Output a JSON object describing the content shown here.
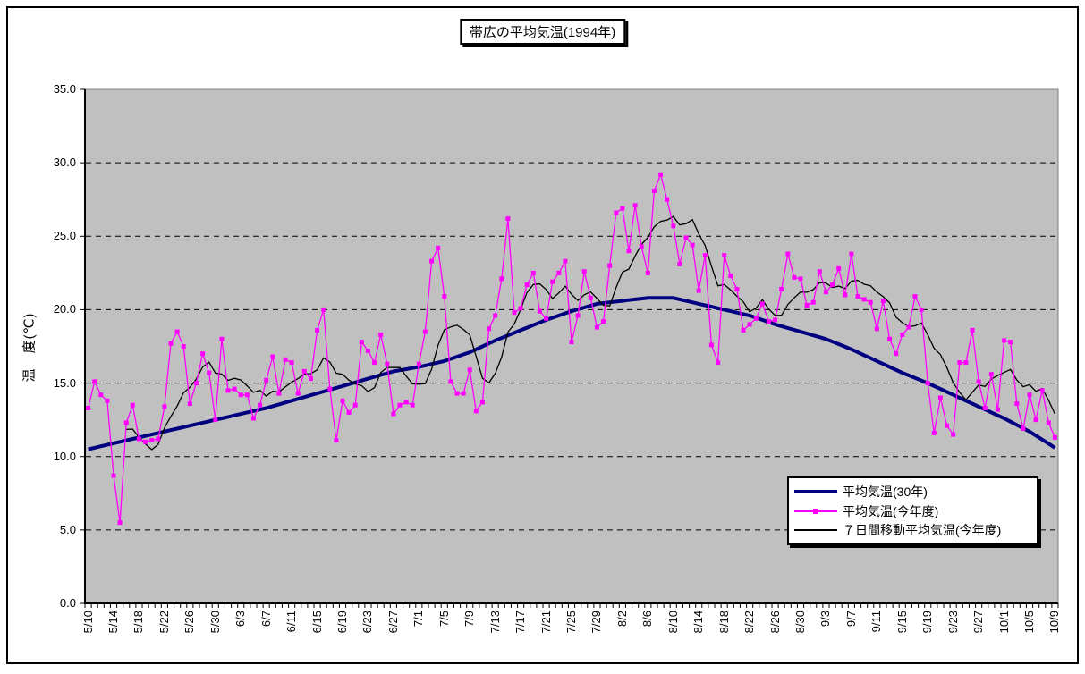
{
  "title": "帯広の平均気温(1994年)",
  "y_axis": {
    "title": "温　度(℃)",
    "tick_labels": [
      "0.0",
      "5.0",
      "10.0",
      "15.0",
      "20.0",
      "25.0",
      "30.0",
      "35.0"
    ],
    "min": 0,
    "max": 35,
    "step": 5
  },
  "x_axis": {
    "tick_labels": [
      "5/10",
      "5/14",
      "5/18",
      "5/22",
      "5/26",
      "5/30",
      "6/3",
      "6/7",
      "6/11",
      "6/15",
      "6/19",
      "6/23",
      "6/27",
      "7/1",
      "7/5",
      "7/9",
      "7/13",
      "7/17",
      "7/21",
      "7/25",
      "7/29",
      "8/2",
      "8/6",
      "8/10",
      "8/14",
      "8/18",
      "8/22",
      "8/26",
      "8/30",
      "9/3",
      "9/7",
      "9/11",
      "9/15",
      "9/19",
      "9/23",
      "9/27",
      "10/1",
      "10/5",
      "10/9"
    ],
    "label_every_n_days": 4
  },
  "legend": {
    "items": [
      {
        "label": "平均気温(30年)",
        "color": "#000080",
        "style": "thick-line"
      },
      {
        "label": "平均気温(今年度)",
        "color": "#FF00FF",
        "style": "line-with-square-marker"
      },
      {
        "label": "７日間移動平均気温(今年度)",
        "color": "#000000",
        "style": "thin-line"
      }
    ]
  },
  "colors": {
    "page_bg": "#FFFFFF",
    "frame": "#000000",
    "plot_bg": "#C0C0C0",
    "plot_border": "#808080",
    "grid": "#000000",
    "axis": "#000000"
  },
  "chart_data": {
    "type": "line",
    "title": "帯広の平均気温(1994年)",
    "ylabel": "温　度(℃)",
    "ylim": [
      0,
      35
    ],
    "grid": "horizontal dashed lines every 5°C on gray plot background",
    "legend_position": "inside lower-right",
    "x_start": "5/10",
    "x_end": "10/9",
    "n_days": 153,
    "series": [
      {
        "name": "平均気温(30年)",
        "color": "#000080",
        "line_width": 4,
        "sampling": "values listed at each labeled tick date (every 4th day), linear in between",
        "values_every_4_days": [
          10.5,
          10.9,
          11.3,
          11.7,
          12.1,
          12.5,
          12.9,
          13.3,
          13.8,
          14.3,
          14.8,
          15.3,
          15.8,
          16.1,
          16.5,
          17.1,
          17.9,
          18.6,
          19.3,
          19.9,
          20.4,
          20.6,
          20.8,
          20.8,
          20.4,
          20.0,
          19.6,
          19.0,
          18.5,
          18.0,
          17.3,
          16.5,
          15.7,
          15.0,
          14.2,
          13.4,
          12.6,
          11.7,
          10.6
        ]
      },
      {
        "name": "平均気温(今年度)",
        "color": "#FF00FF",
        "line_width": 1.3,
        "marker": "square",
        "marker_size": 5,
        "daily_values": [
          13.3,
          15.1,
          14.2,
          13.8,
          8.7,
          5.5,
          12.3,
          13.5,
          11.2,
          11.0,
          11.1,
          11.2,
          13.4,
          17.7,
          18.5,
          17.5,
          13.6,
          15.0,
          17.0,
          15.7,
          12.5,
          18.0,
          14.5,
          14.6,
          14.2,
          14.2,
          12.6,
          13.5,
          15.2,
          16.8,
          14.3,
          16.6,
          16.4,
          14.3,
          15.8,
          15.3,
          18.6,
          20.0,
          14.6,
          11.1,
          13.8,
          13.0,
          13.5,
          17.8,
          17.2,
          16.4,
          18.3,
          16.3,
          12.9,
          13.5,
          13.7,
          13.5,
          16.3,
          18.5,
          23.3,
          24.2,
          20.9,
          15.1,
          14.3,
          14.3,
          15.9,
          13.1,
          13.7,
          18.7,
          19.6,
          22.1,
          26.2,
          19.8,
          20.1,
          21.7,
          22.5,
          19.9,
          19.4,
          21.9,
          22.5,
          23.3,
          17.8,
          19.6,
          22.6,
          20.8,
          18.8,
          19.2,
          23.0,
          26.6,
          26.9,
          24.0,
          27.1,
          24.3,
          22.5,
          28.1,
          29.2,
          27.5,
          25.7,
          23.1,
          24.9,
          24.4,
          21.3,
          23.7,
          17.6,
          16.4,
          23.7,
          22.3,
          21.4,
          18.6,
          19.0,
          19.4,
          20.4,
          19.2,
          19.3,
          21.4,
          23.8,
          22.2,
          22.1,
          20.3,
          20.5,
          22.6,
          21.2,
          21.7,
          22.8,
          21.0,
          23.8,
          20.9,
          20.7,
          20.5,
          18.7,
          20.6,
          18.0,
          17.0,
          18.3,
          18.8,
          20.9,
          20.0,
          15.0,
          11.6,
          14.0,
          12.1,
          11.5,
          16.4,
          16.4,
          18.6,
          15.1,
          13.3,
          15.6,
          13.2,
          17.9,
          17.8,
          13.6,
          11.9,
          14.2,
          12.5,
          14.5,
          12.3,
          11.3
        ]
      },
      {
        "name": "７日間移動平均気温(今年度)",
        "color": "#000000",
        "line_width": 1.3,
        "derived": "trailing 7-day moving average of 平均気温(今年度), plotted from the 7th day onward"
      }
    ]
  }
}
